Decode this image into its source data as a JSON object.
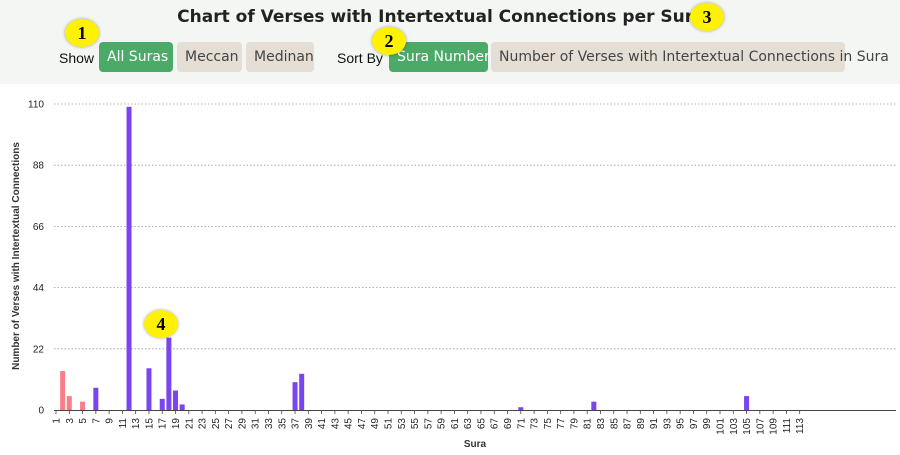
{
  "header": {
    "title": "Chart of Verses with Intertextual Connections per Sura",
    "table_icon": "▦"
  },
  "filters": {
    "show_label": "Show",
    "show_options": [
      "All Suras",
      "Meccan",
      "Medinan"
    ],
    "show_selected": "All Suras",
    "sort_label": "Sort By",
    "sort_options": [
      "Sura Number",
      "Number of Verses with Intertextual Connections in Sura"
    ],
    "sort_selected": "Sura Number"
  },
  "annotations": [
    "1",
    "2",
    "3",
    "4"
  ],
  "colors": {
    "meccan": "#7a44f0",
    "medinan": "#f87f88",
    "active_button": "#4caa68",
    "inactive_button": "#e5ded5",
    "header_bg": "#f3f6f3",
    "annotation": "#fff200"
  },
  "chart_data": {
    "type": "bar",
    "title": "Chart of Verses with Intertextual Connections per Sura",
    "xlabel": "Sura",
    "ylabel": "Number of Verses with Intertextual Connections",
    "ylim": [
      0,
      110
    ],
    "yticks": [
      0,
      22,
      44,
      66,
      88,
      110
    ],
    "grid": "horizontal dotted",
    "categories_range": [
      1,
      114
    ],
    "xtick_labels": [
      "1",
      "3",
      "5",
      "7",
      "9",
      "11",
      "13",
      "15",
      "17",
      "19",
      "21",
      "23",
      "25",
      "27",
      "29",
      "31",
      "33",
      "35",
      "37",
      "39",
      "41",
      "43",
      "45",
      "47",
      "49",
      "51",
      "53",
      "55",
      "57",
      "59",
      "61",
      "63",
      "65",
      "67",
      "69",
      "71",
      "73",
      "75",
      "77",
      "79",
      "81",
      "83",
      "85",
      "87",
      "89",
      "91",
      "93",
      "95",
      "97",
      "99",
      "101",
      "103",
      "105",
      "107",
      "109",
      "111",
      "113"
    ],
    "series": [
      {
        "color": "#f87f88",
        "points": [
          {
            "sura": 2,
            "value": 14
          },
          {
            "sura": 3,
            "value": 5
          },
          {
            "sura": 5,
            "value": 3
          }
        ]
      },
      {
        "color": "#7a44f0",
        "points": [
          {
            "sura": 7,
            "value": 8
          },
          {
            "sura": 12,
            "value": 109
          },
          {
            "sura": 15,
            "value": 15
          },
          {
            "sura": 17,
            "value": 4
          },
          {
            "sura": 18,
            "value": 26
          },
          {
            "sura": 19,
            "value": 7
          },
          {
            "sura": 20,
            "value": 2
          },
          {
            "sura": 37,
            "value": 10
          },
          {
            "sura": 38,
            "value": 13
          },
          {
            "sura": 71,
            "value": 1
          },
          {
            "sura": 82,
            "value": 3
          },
          {
            "sura": 105,
            "value": 5
          }
        ]
      }
    ]
  }
}
